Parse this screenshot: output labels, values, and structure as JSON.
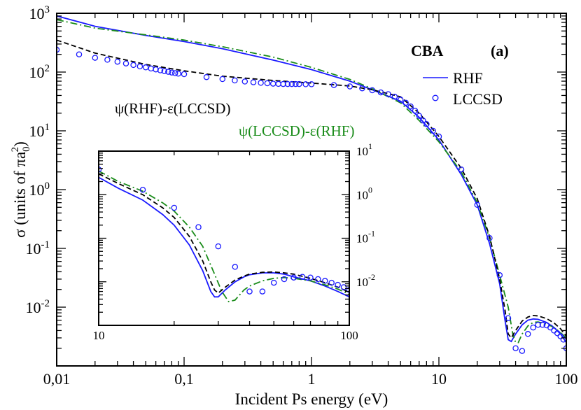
{
  "chart_data": {
    "type": "line",
    "scale": "log-log",
    "xlabel": "Incident Ps energy (eV)",
    "ylabel": "σ (units of πa",
    "ylabel_sub": "0",
    "ylabel_sup": "2",
    "ylabel_close": ")",
    "xlim": [
      0.01,
      100
    ],
    "ylim": [
      0.001,
      1000
    ],
    "x_ticks": [
      {
        "value": 0.01,
        "label": "0,01"
      },
      {
        "value": 0.1,
        "label": "0,1"
      },
      {
        "value": 1,
        "label": "1"
      },
      {
        "value": 10,
        "label": "10"
      },
      {
        "value": 100,
        "label": "100"
      }
    ],
    "y_ticks": [
      {
        "value": 0.01,
        "base": "10",
        "exp": "-2"
      },
      {
        "value": 0.1,
        "base": "10",
        "exp": "-1"
      },
      {
        "value": 1,
        "base": "10",
        "exp": "0"
      },
      {
        "value": 10,
        "base": "10",
        "exp": "1"
      },
      {
        "value": 100,
        "base": "10",
        "exp": "2"
      },
      {
        "value": 1000,
        "base": "10",
        "exp": "3"
      }
    ],
    "legend": {
      "title": "CBA",
      "panel_label": "(a)",
      "entries": [
        {
          "name": "RHF",
          "style": "line",
          "color": "#1a1aff"
        },
        {
          "name": "LCCSD",
          "style": "circle",
          "color": "#1a1aff"
        }
      ]
    },
    "annotations": [
      {
        "text": "ψ(RHF)-ε(LCCSD)",
        "color": "#000000",
        "series": "black dashed"
      },
      {
        "text": "ψ(LCCSD)-ε(RHF)",
        "color": "#1a8c1a",
        "series": "green dash-dot"
      }
    ],
    "series": [
      {
        "name": "RHF",
        "color": "#1a1aff",
        "dash": "solid",
        "points": [
          [
            0.01,
            900
          ],
          [
            0.02,
            600
          ],
          [
            0.05,
            420
          ],
          [
            0.1,
            330
          ],
          [
            0.2,
            250
          ],
          [
            0.5,
            160
          ],
          [
            1,
            110
          ],
          [
            2,
            70
          ],
          [
            3,
            50
          ],
          [
            5,
            32
          ],
          [
            7,
            17
          ],
          [
            10,
            7
          ],
          [
            15,
            1.8
          ],
          [
            20,
            0.55
          ],
          [
            25,
            0.12
          ],
          [
            30,
            0.025
          ],
          [
            33,
            0.006
          ],
          [
            35,
            0.0028
          ],
          [
            37,
            0.0026
          ],
          [
            40,
            0.0035
          ],
          [
            45,
            0.005
          ],
          [
            50,
            0.006
          ],
          [
            55,
            0.0063
          ],
          [
            60,
            0.0062
          ],
          [
            70,
            0.0055
          ],
          [
            80,
            0.0045
          ],
          [
            90,
            0.0035
          ],
          [
            100,
            0.0025
          ]
        ]
      },
      {
        "name": "ψ(LCCSD)-ε(RHF)",
        "color": "#1a8c1a",
        "dash": "dashdot",
        "points": [
          [
            0.01,
            780
          ],
          [
            0.02,
            560
          ],
          [
            0.05,
            430
          ],
          [
            0.1,
            350
          ],
          [
            0.2,
            270
          ],
          [
            0.5,
            180
          ],
          [
            1,
            120
          ],
          [
            2,
            75
          ],
          [
            3,
            52
          ],
          [
            5,
            30
          ],
          [
            7,
            15
          ],
          [
            10,
            6.5
          ],
          [
            15,
            2
          ],
          [
            20,
            0.6
          ],
          [
            25,
            0.15
          ],
          [
            30,
            0.035
          ],
          [
            35,
            0.01
          ],
          [
            38,
            0.0035
          ],
          [
            40,
            0.0025
          ],
          [
            42,
            0.0025
          ],
          [
            45,
            0.0035
          ],
          [
            50,
            0.0048
          ],
          [
            55,
            0.0055
          ],
          [
            60,
            0.0056
          ],
          [
            70,
            0.0052
          ],
          [
            80,
            0.0045
          ],
          [
            90,
            0.0037
          ],
          [
            100,
            0.003
          ]
        ]
      },
      {
        "name": "ψ(RHF)-ε(LCCSD)",
        "color": "#000000",
        "dash": "dashed",
        "points": [
          [
            0.01,
            350
          ],
          [
            0.02,
            210
          ],
          [
            0.05,
            135
          ],
          [
            0.1,
            105
          ],
          [
            0.2,
            85
          ],
          [
            0.5,
            72
          ],
          [
            1,
            65
          ],
          [
            2,
            58
          ],
          [
            3,
            50
          ],
          [
            5,
            38
          ],
          [
            7,
            20
          ],
          [
            10,
            8
          ],
          [
            15,
            2.3
          ],
          [
            20,
            0.7
          ],
          [
            25,
            0.16
          ],
          [
            30,
            0.03
          ],
          [
            33,
            0.009
          ],
          [
            35,
            0.0035
          ],
          [
            37,
            0.003
          ],
          [
            40,
            0.004
          ],
          [
            45,
            0.0058
          ],
          [
            50,
            0.0068
          ],
          [
            55,
            0.0072
          ],
          [
            60,
            0.0071
          ],
          [
            70,
            0.0064
          ],
          [
            80,
            0.0054
          ],
          [
            90,
            0.0043
          ],
          [
            100,
            0.0032
          ]
        ]
      },
      {
        "name": "LCCSD",
        "color": "#1a1aff",
        "marker": "circle",
        "points": [
          [
            0.01,
            240
          ],
          [
            0.015,
            200
          ],
          [
            0.02,
            175
          ],
          [
            0.025,
            162
          ],
          [
            0.03,
            150
          ],
          [
            0.035,
            140
          ],
          [
            0.04,
            132
          ],
          [
            0.045,
            125
          ],
          [
            0.05,
            120
          ],
          [
            0.055,
            115
          ],
          [
            0.06,
            111
          ],
          [
            0.065,
            107
          ],
          [
            0.07,
            104
          ],
          [
            0.075,
            101
          ],
          [
            0.08,
            98
          ],
          [
            0.085,
            96
          ],
          [
            0.09,
            94
          ],
          [
            0.1,
            92
          ],
          [
            0.15,
            82
          ],
          [
            0.2,
            76
          ],
          [
            0.25,
            72
          ],
          [
            0.3,
            69
          ],
          [
            0.35,
            67
          ],
          [
            0.4,
            65.5
          ],
          [
            0.45,
            64.5
          ],
          [
            0.5,
            63.5
          ],
          [
            0.55,
            63
          ],
          [
            0.6,
            62.5
          ],
          [
            0.65,
            62.5
          ],
          [
            0.7,
            62.5
          ],
          [
            0.75,
            62.5
          ],
          [
            0.8,
            62.5
          ],
          [
            0.9,
            62
          ],
          [
            1,
            62
          ],
          [
            1.5,
            60
          ],
          [
            2,
            57
          ],
          [
            2.5,
            53
          ],
          [
            3,
            49
          ],
          [
            3.5,
            45
          ],
          [
            4,
            42
          ],
          [
            4.5,
            38
          ],
          [
            5,
            34
          ],
          [
            5.5,
            30
          ],
          [
            6,
            26
          ],
          [
            6.5,
            22
          ],
          [
            7,
            18
          ],
          [
            7.5,
            15
          ],
          [
            8,
            13
          ],
          [
            9,
            10
          ],
          [
            10,
            8
          ],
          [
            15,
            2.2
          ],
          [
            20,
            0.55
          ],
          [
            25,
            0.15
          ],
          [
            30,
            0.035
          ],
          [
            35,
            0.0065
          ],
          [
            40,
            0.002
          ],
          [
            45,
            0.0018
          ],
          [
            50,
            0.0035
          ],
          [
            55,
            0.0045
          ],
          [
            60,
            0.005
          ],
          [
            65,
            0.005
          ],
          [
            70,
            0.0049
          ],
          [
            75,
            0.0045
          ],
          [
            80,
            0.004
          ],
          [
            85,
            0.0036
          ],
          [
            90,
            0.0032
          ],
          [
            95,
            0.0028
          ],
          [
            100,
            0.002
          ]
        ]
      }
    ],
    "inset": {
      "xlim": [
        10,
        100
      ],
      "ylim": [
        0.001,
        10
      ],
      "x_ticks": [
        {
          "value": 10,
          "label": "10"
        },
        {
          "value": 100,
          "label": "100"
        }
      ],
      "y_ticks": [
        {
          "value": 0.01,
          "base": "10",
          "exp": "-2"
        },
        {
          "value": 0.1,
          "base": "10",
          "exp": "-1"
        },
        {
          "value": 1,
          "base": "10",
          "exp": "0"
        },
        {
          "value": 10,
          "base": "10",
          "exp": "1"
        }
      ],
      "series": [
        {
          "name": "RHF",
          "color": "#1a1aff",
          "dash": "solid",
          "points": [
            [
              10,
              2.5
            ],
            [
              12,
              1.4
            ],
            [
              15,
              0.75
            ],
            [
              18,
              0.35
            ],
            [
              20,
              0.2
            ],
            [
              23,
              0.07
            ],
            [
              26,
              0.018
            ],
            [
              28,
              0.006
            ],
            [
              29,
              0.0045
            ],
            [
              30,
              0.0045
            ],
            [
              32,
              0.0065
            ],
            [
              35,
              0.01
            ],
            [
              38,
              0.013
            ],
            [
              40,
              0.0145
            ],
            [
              45,
              0.016
            ],
            [
              50,
              0.016
            ],
            [
              55,
              0.015
            ],
            [
              60,
              0.013
            ],
            [
              70,
              0.0105
            ],
            [
              80,
              0.008
            ],
            [
              90,
              0.006
            ],
            [
              100,
              0.0045
            ]
          ]
        },
        {
          "name": "ψ(LCCSD)-ε(RHF)",
          "color": "#1a8c1a",
          "dash": "dashdot",
          "points": [
            [
              10,
              3.5
            ],
            [
              12,
              2
            ],
            [
              15,
              1.2
            ],
            [
              18,
              0.65
            ],
            [
              20,
              0.42
            ],
            [
              23,
              0.18
            ],
            [
              26,
              0.065
            ],
            [
              29,
              0.015
            ],
            [
              31,
              0.006
            ],
            [
              33,
              0.0035
            ],
            [
              35,
              0.0038
            ],
            [
              38,
              0.0065
            ],
            [
              40,
              0.008
            ],
            [
              45,
              0.0105
            ],
            [
              50,
              0.012
            ],
            [
              55,
              0.0125
            ],
            [
              60,
              0.012
            ],
            [
              70,
              0.0105
            ],
            [
              80,
              0.0085
            ],
            [
              90,
              0.0068
            ],
            [
              100,
              0.0052
            ]
          ]
        },
        {
          "name": "ψ(RHF)-ε(LCCSD)",
          "color": "#000000",
          "dash": "dashed",
          "points": [
            [
              10,
              3
            ],
            [
              12,
              1.8
            ],
            [
              15,
              1
            ],
            [
              18,
              0.5
            ],
            [
              20,
              0.3
            ],
            [
              23,
              0.11
            ],
            [
              26,
              0.03
            ],
            [
              28,
              0.01
            ],
            [
              29,
              0.0065
            ],
            [
              30,
              0.0055
            ],
            [
              32,
              0.0075
            ],
            [
              35,
              0.011
            ],
            [
              38,
              0.0135
            ],
            [
              40,
              0.015
            ],
            [
              45,
              0.0165
            ],
            [
              50,
              0.0168
            ],
            [
              55,
              0.016
            ],
            [
              60,
              0.015
            ],
            [
              70,
              0.012
            ],
            [
              80,
              0.0095
            ],
            [
              90,
              0.0075
            ],
            [
              100,
              0.0058
            ]
          ]
        },
        {
          "name": "LCCSD",
          "color": "#1a1aff",
          "marker": "circle",
          "points": [
            [
              10,
              3.8
            ],
            [
              15,
              1.3
            ],
            [
              20,
              0.5
            ],
            [
              25,
              0.18
            ],
            [
              30,
              0.065
            ],
            [
              35,
              0.022
            ],
            [
              40,
              0.006
            ],
            [
              45,
              0.006
            ],
            [
              50,
              0.0095
            ],
            [
              55,
              0.0115
            ],
            [
              60,
              0.0125
            ],
            [
              65,
              0.013
            ],
            [
              70,
              0.0125
            ],
            [
              75,
              0.0115
            ],
            [
              80,
              0.0105
            ],
            [
              85,
              0.0095
            ],
            [
              90,
              0.0085
            ],
            [
              95,
              0.0075
            ],
            [
              100,
              0.0065
            ]
          ]
        }
      ]
    }
  }
}
